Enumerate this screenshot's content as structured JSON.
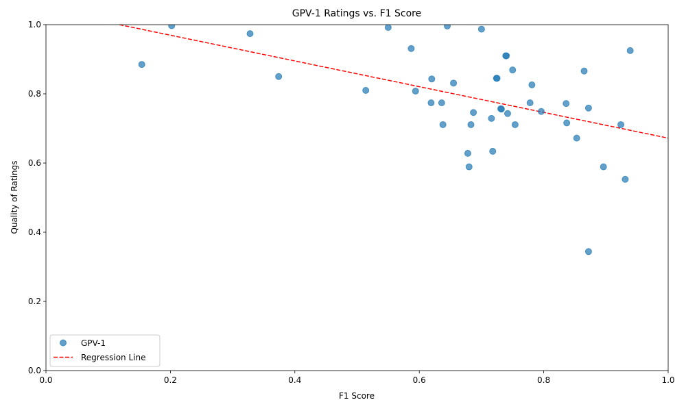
{
  "chart_data": {
    "type": "scatter",
    "title": "GPV-1 Ratings vs. F1 Score",
    "xlabel": "F1 Score",
    "ylabel": "Quality of Ratings",
    "xlim": [
      0.0,
      1.0
    ],
    "ylim": [
      0.0,
      1.0
    ],
    "xticks": [
      "0.0",
      "0.2",
      "0.4",
      "0.6",
      "0.8",
      "1.0"
    ],
    "yticks": [
      "0.0",
      "0.2",
      "0.4",
      "0.6",
      "0.8",
      "1.0"
    ],
    "grid": false,
    "legend_position": "lower-left",
    "series": [
      {
        "name": "GPV-1",
        "kind": "scatter",
        "color": "#1f77b4",
        "points": [
          [
            0.154,
            0.885
          ],
          [
            0.202,
            0.997
          ],
          [
            0.328,
            0.974
          ],
          [
            0.374,
            0.85
          ],
          [
            0.514,
            0.81
          ],
          [
            0.55,
            0.992
          ],
          [
            0.587,
            0.931
          ],
          [
            0.594,
            0.808
          ],
          [
            0.619,
            0.774
          ],
          [
            0.62,
            0.843
          ],
          [
            0.636,
            0.774
          ],
          [
            0.638,
            0.711
          ],
          [
            0.645,
            0.996
          ],
          [
            0.655,
            0.831
          ],
          [
            0.678,
            0.628
          ],
          [
            0.68,
            0.589
          ],
          [
            0.683,
            0.711
          ],
          [
            0.687,
            0.746
          ],
          [
            0.7,
            0.987
          ],
          [
            0.716,
            0.729
          ],
          [
            0.718,
            0.634
          ],
          [
            0.724,
            0.845
          ],
          [
            0.725,
            0.845
          ],
          [
            0.731,
            0.757
          ],
          [
            0.732,
            0.756
          ],
          [
            0.739,
            0.91
          ],
          [
            0.74,
            0.91
          ],
          [
            0.742,
            0.743
          ],
          [
            0.75,
            0.869
          ],
          [
            0.754,
            0.711
          ],
          [
            0.778,
            0.774
          ],
          [
            0.781,
            0.826
          ],
          [
            0.796,
            0.749
          ],
          [
            0.836,
            0.772
          ],
          [
            0.837,
            0.716
          ],
          [
            0.853,
            0.672
          ],
          [
            0.865,
            0.866
          ],
          [
            0.872,
            0.759
          ],
          [
            0.872,
            0.344
          ],
          [
            0.896,
            0.589
          ],
          [
            0.924,
            0.711
          ],
          [
            0.931,
            0.553
          ],
          [
            0.939,
            0.925
          ]
        ]
      },
      {
        "name": "Regression Line",
        "kind": "line",
        "color": "#ff0000",
        "dash": "dashed",
        "x": [
          0.118,
          1.0
        ],
        "y": [
          1.0,
          0.672
        ]
      }
    ]
  }
}
